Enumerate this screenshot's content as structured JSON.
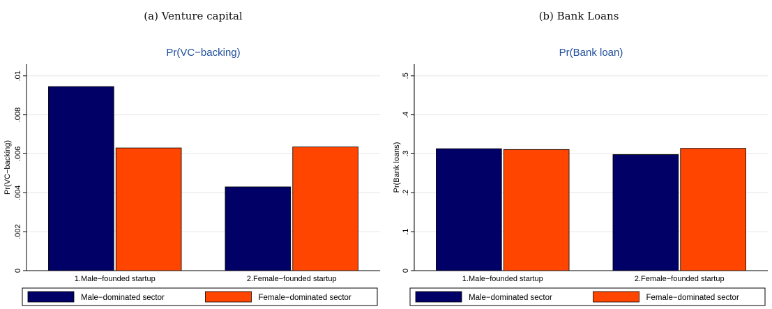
{
  "captions": {
    "a": "(a) Venture capital",
    "b": "(b) Bank Loans"
  },
  "colors": {
    "male_sector": "#000066",
    "female_sector": "#ff4500",
    "title": "#1f4e9a",
    "grid": "#e6e6e6",
    "axis": "#000000"
  },
  "chart_data": [
    {
      "type": "bar",
      "title": "Pr(VC−backing)",
      "xlabel": "",
      "ylabel": "Pr(VC−backing)",
      "categories": [
        "1.Male−founded startup",
        "2.Female−founded startup"
      ],
      "series": [
        {
          "name": "Male−dominated sector",
          "values": [
            0.00945,
            0.0043
          ]
        },
        {
          "name": "Female−dominated sector",
          "values": [
            0.0063,
            0.00635
          ]
        }
      ],
      "ylim": [
        0,
        0.0106
      ],
      "yticks": [
        0,
        0.002,
        0.004,
        0.006,
        0.008,
        0.01
      ],
      "ytick_labels": [
        "0",
        ".002",
        ".004",
        ".006",
        ".008",
        ".01"
      ],
      "grid": true,
      "legend": "bottom"
    },
    {
      "type": "bar",
      "title": "Pr(Bank loan)",
      "xlabel": "",
      "ylabel": "Pr(Bank loans)",
      "categories": [
        "1.Male−founded startup",
        "2.Female−founded startup"
      ],
      "series": [
        {
          "name": "Male−dominated sector",
          "values": [
            0.313,
            0.298
          ]
        },
        {
          "name": "Female−dominated sector",
          "values": [
            0.311,
            0.314
          ]
        }
      ],
      "ylim": [
        0,
        0.53
      ],
      "yticks": [
        0,
        0.1,
        0.2,
        0.3,
        0.4,
        0.5
      ],
      "ytick_labels": [
        "0",
        ".1",
        ".2",
        ".3",
        ".4",
        ".5"
      ],
      "grid": true,
      "legend": "bottom"
    }
  ]
}
